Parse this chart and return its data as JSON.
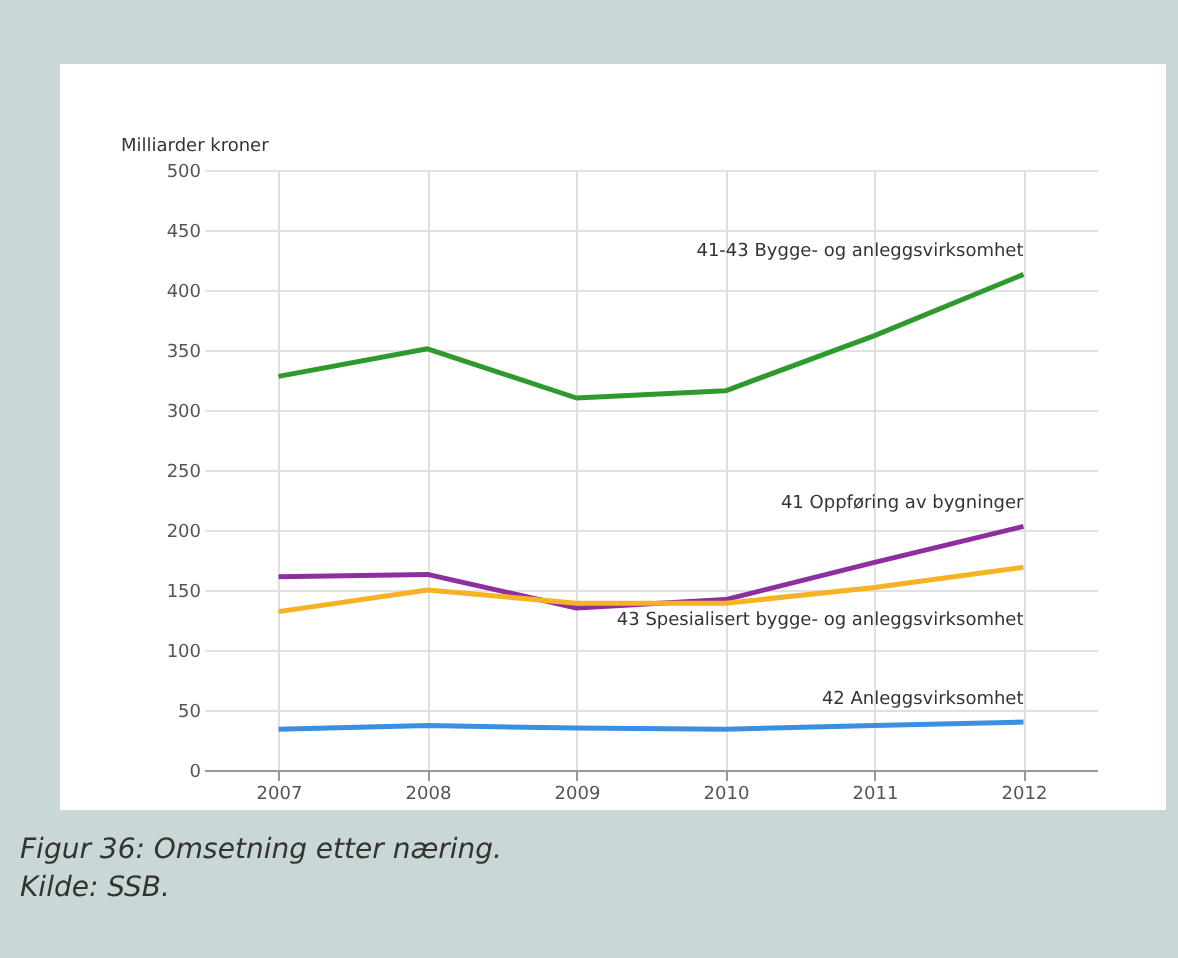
{
  "chart_data": {
    "type": "line",
    "title": "Figur 36: Omsetning etter næring.",
    "annotations": [
      "Kilde: SSB."
    ],
    "ylabel": "Milliarder kroner",
    "x": [
      2007,
      2008,
      2009,
      2010,
      2011,
      2012
    ],
    "xlim": [
      2006.5,
      2012.5
    ],
    "xticks": [
      2007,
      2008,
      2009,
      2010,
      2011,
      2012
    ],
    "ylim": [
      0,
      500
    ],
    "yticks": [
      0,
      50,
      100,
      150,
      200,
      250,
      300,
      350,
      400,
      450,
      500
    ],
    "grid": true,
    "line_style": "solid",
    "series": [
      {
        "name": "41-43 Bygge- og anleggsvirksomhet",
        "color": "#2e9a2e",
        "values": [
          328,
          351,
          310,
          316,
          362,
          413
        ]
      },
      {
        "name": "41 Oppføring av bygninger",
        "color": "#8e2fa0",
        "values": [
          161,
          163,
          135,
          142,
          173,
          203
        ]
      },
      {
        "name": "43 Spesialisert bygge- og anleggsvirksomhet",
        "color": "#f5b323",
        "values": [
          132,
          150,
          139,
          139,
          152,
          169
        ]
      },
      {
        "name": "42 Anleggsvirksomhet",
        "color": "#3a8fe0",
        "values": [
          34,
          37,
          35,
          34,
          37,
          40
        ]
      }
    ]
  }
}
